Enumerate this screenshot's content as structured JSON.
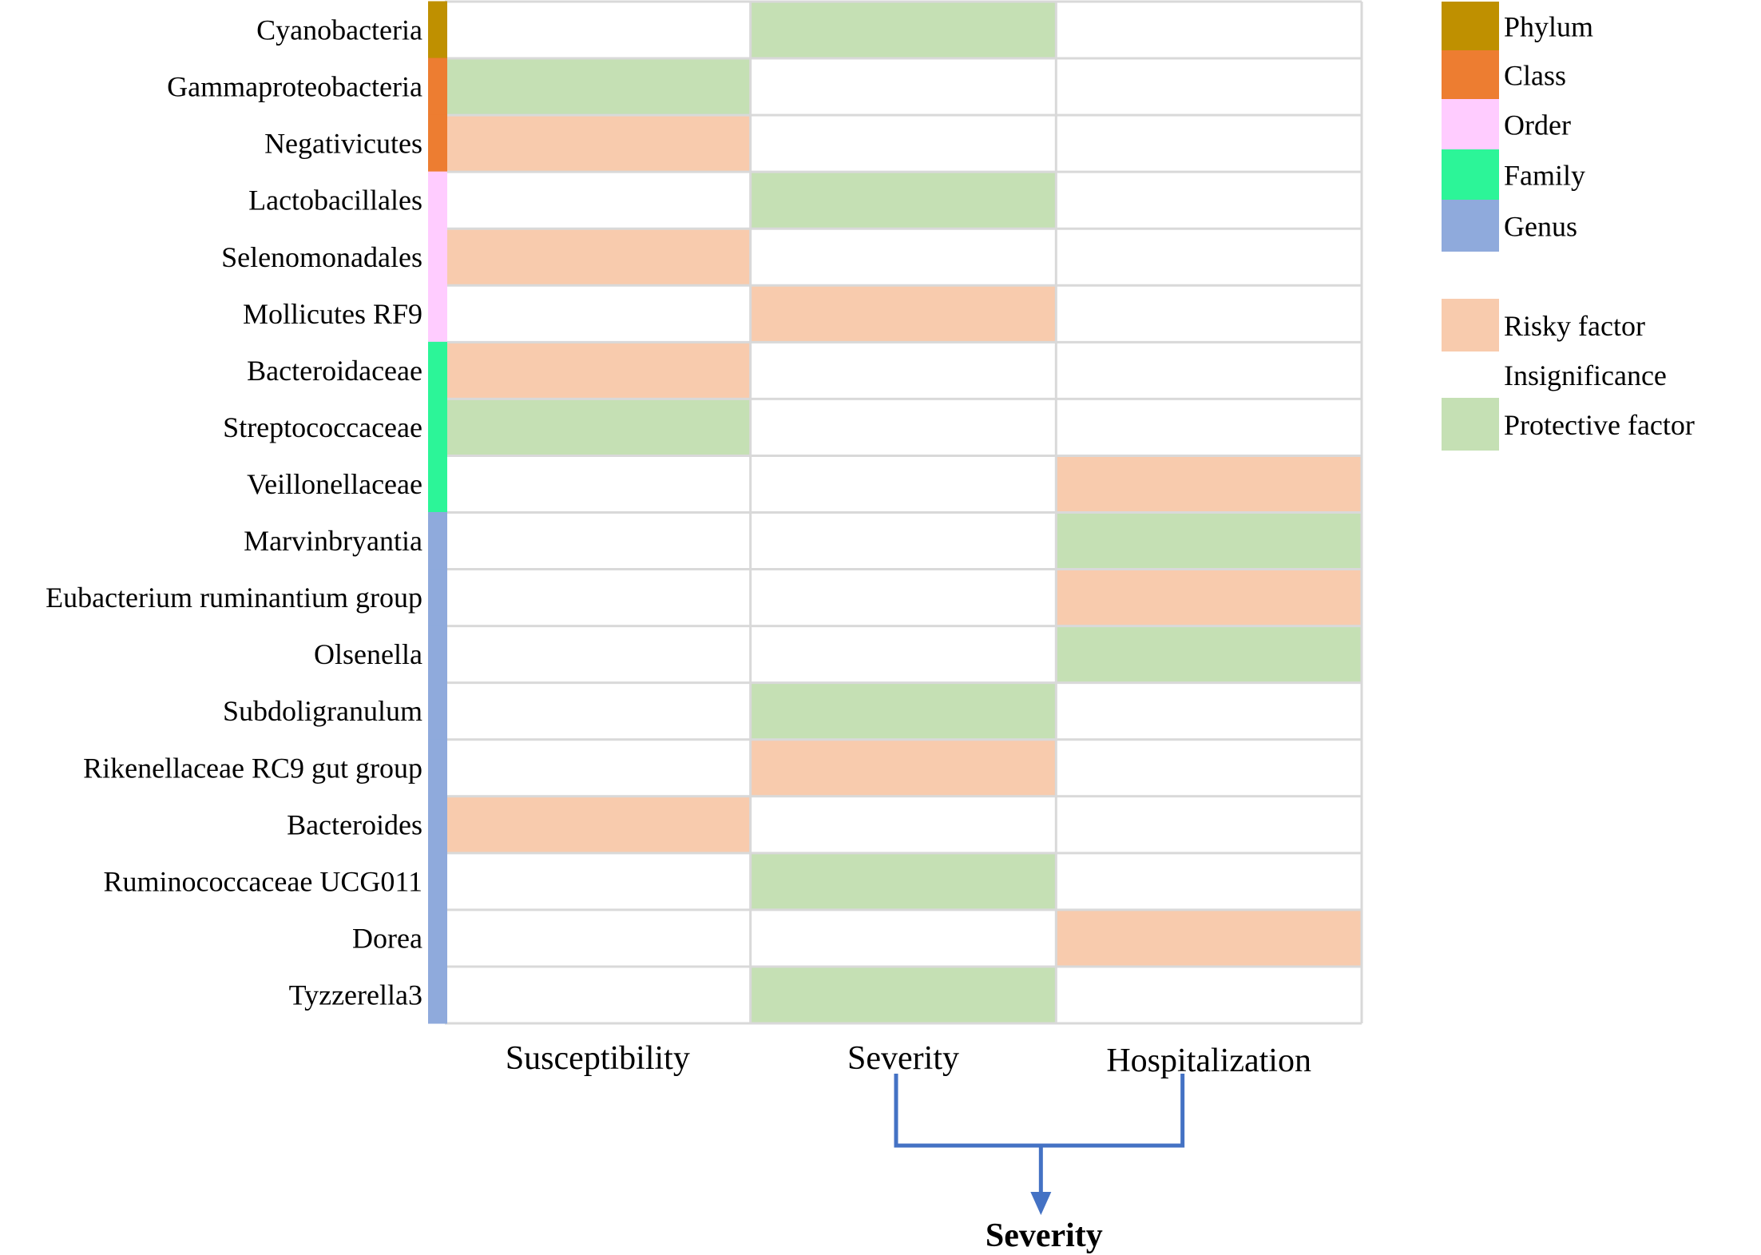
{
  "chart_data": {
    "type": "heatmap",
    "title": "",
    "columns": [
      "Susceptibility",
      "Severity",
      "Hospitalization"
    ],
    "rows": [
      {
        "label": "Cyanobacteria",
        "level": "Phylum",
        "values": [
          "Insignificance",
          "Protective factor",
          "Insignificance"
        ]
      },
      {
        "label": "Gammaproteobacteria",
        "level": "Class",
        "values": [
          "Protective factor",
          "Insignificance",
          "Insignificance"
        ]
      },
      {
        "label": "Negativicutes",
        "level": "Class",
        "values": [
          "Risky factor",
          "Insignificance",
          "Insignificance"
        ]
      },
      {
        "label": "Lactobacillales",
        "level": "Order",
        "values": [
          "Insignificance",
          "Protective factor",
          "Insignificance"
        ]
      },
      {
        "label": "Selenomonadales",
        "level": "Order",
        "values": [
          "Risky factor",
          "Insignificance",
          "Insignificance"
        ]
      },
      {
        "label": "Mollicutes RF9",
        "level": "Order",
        "values": [
          "Insignificance",
          "Risky factor",
          "Insignificance"
        ]
      },
      {
        "label": "Bacteroidaceae",
        "level": "Family",
        "values": [
          "Risky factor",
          "Insignificance",
          "Insignificance"
        ]
      },
      {
        "label": "Streptococcaceae",
        "level": "Family",
        "values": [
          "Protective factor",
          "Insignificance",
          "Insignificance"
        ]
      },
      {
        "label": "Veillonellaceae",
        "level": "Family",
        "values": [
          "Insignificance",
          "Insignificance",
          "Risky factor"
        ]
      },
      {
        "label": "Marvinbryantia",
        "level": "Genus",
        "values": [
          "Insignificance",
          "Insignificance",
          "Protective factor"
        ]
      },
      {
        "label": "Eubacterium ruminantium group",
        "level": "Genus",
        "values": [
          "Insignificance",
          "Insignificance",
          "Risky factor"
        ]
      },
      {
        "label": "Olsenella",
        "level": "Genus",
        "values": [
          "Insignificance",
          "Insignificance",
          "Protective factor"
        ]
      },
      {
        "label": "Subdoligranulum",
        "level": "Genus",
        "values": [
          "Insignificance",
          "Protective factor",
          "Insignificance"
        ]
      },
      {
        "label": "Rikenellaceae RC9 gut group",
        "level": "Genus",
        "values": [
          "Insignificance",
          "Risky factor",
          "Insignificance"
        ]
      },
      {
        "label": "Bacteroides",
        "level": "Genus",
        "values": [
          "Risky factor",
          "Insignificance",
          "Insignificance"
        ]
      },
      {
        "label": "Ruminococcaceae UCG011",
        "level": "Genus",
        "values": [
          "Insignificance",
          "Protective factor",
          "Insignificance"
        ]
      },
      {
        "label": "Dorea",
        "level": "Genus",
        "values": [
          "Insignificance",
          "Insignificance",
          "Risky factor"
        ]
      },
      {
        "label": "Tyzzerella3",
        "level": "Genus",
        "values": [
          "Insignificance",
          "Protective factor",
          "Insignificance"
        ]
      }
    ],
    "level_legend": [
      {
        "name": "Phylum",
        "color": "#bf9000"
      },
      {
        "name": "Class",
        "color": "#ed7d31"
      },
      {
        "name": "Order",
        "color": "#ffccff"
      },
      {
        "name": "Family",
        "color": "#2cf598"
      },
      {
        "name": "Genus",
        "color": "#8faadc"
      }
    ],
    "effect_legend": [
      {
        "name": "Risky factor",
        "color": "#f8cbad"
      },
      {
        "name": "Insignificance",
        "color": "#ffffff"
      },
      {
        "name": "Protective factor",
        "color": "#c5e0b4"
      }
    ],
    "bracket": {
      "merges": [
        "Severity",
        "Hospitalization"
      ],
      "result_label": "Severity",
      "color": "#4472c4"
    },
    "grid_color": "#d9d9d9"
  }
}
